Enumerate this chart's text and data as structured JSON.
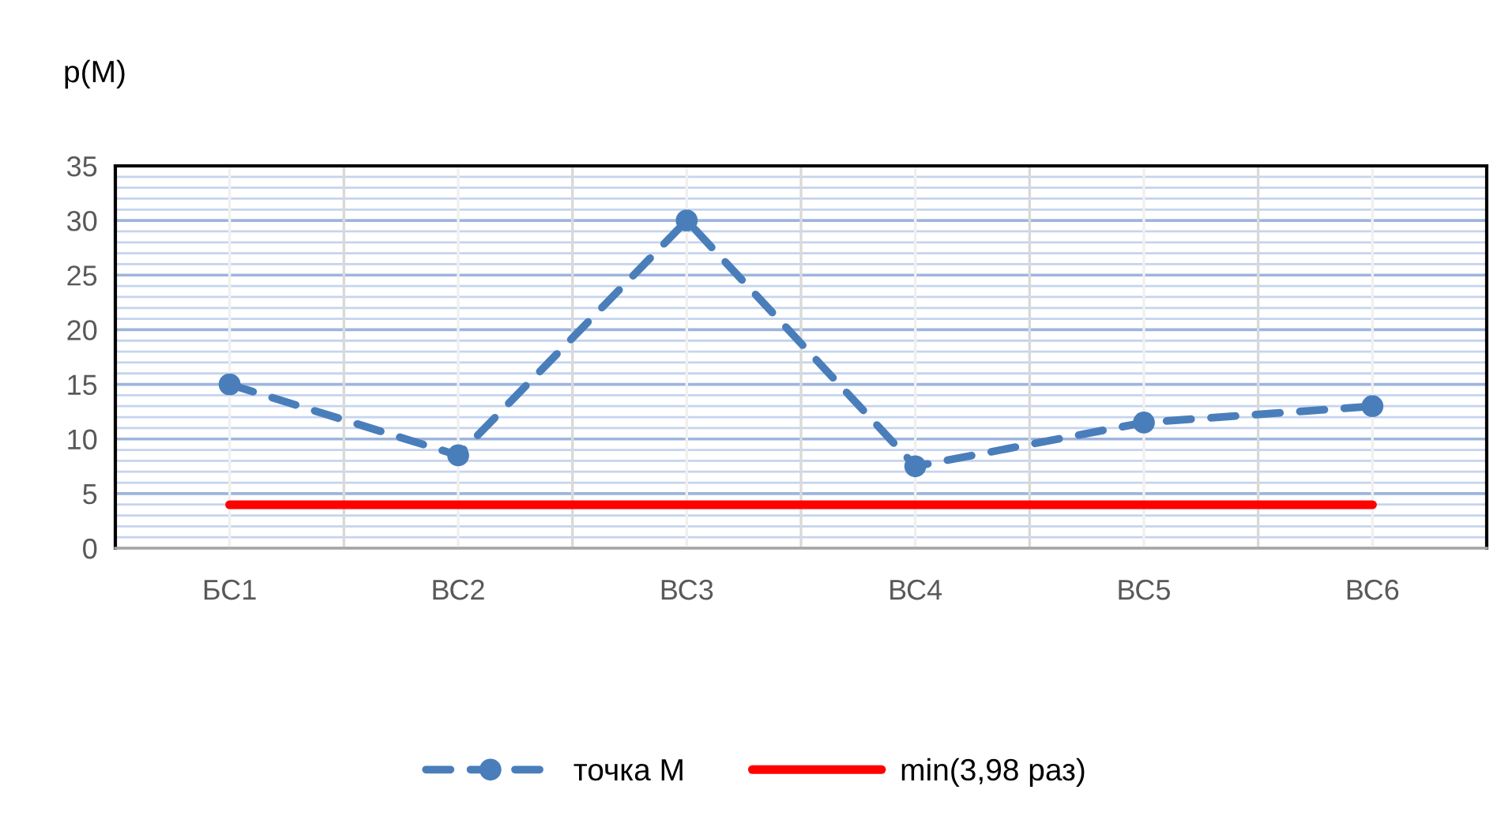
{
  "chart_data": {
    "type": "line",
    "ylabel": "p(M)",
    "categories": [
      "БС1",
      "ВС2",
      "ВС3",
      "ВС4",
      "ВС5",
      "ВС6"
    ],
    "series": [
      {
        "name": "точка М",
        "color": "#4a7ebb",
        "values": [
          15,
          8.5,
          30,
          7.5,
          11.5,
          13
        ],
        "marker": "circle",
        "line_style": "dashed"
      },
      {
        "name": "min(3,98 раз)",
        "color": "#ff0000",
        "values": [
          3.98,
          3.98,
          3.98,
          3.98,
          3.98,
          3.98
        ],
        "marker": "none",
        "line_style": "solid"
      }
    ],
    "ylim": [
      0,
      35
    ],
    "yticks": [
      0,
      {
        "value": 1,
        "label": null
      },
      {
        "value": 2,
        "label": null
      },
      {
        "value": 3,
        "label": null
      },
      {
        "value": 4,
        "label": null
      },
      5,
      {
        "value": 6,
        "label": null
      },
      {
        "value": 7,
        "label": null
      },
      {
        "value": 8,
        "label": null
      },
      {
        "value": 9,
        "label": null
      },
      10,
      {
        "value": 11,
        "label": null
      },
      {
        "value": 12,
        "label": null
      },
      {
        "value": 13,
        "label": null
      },
      {
        "value": 14,
        "label": null
      },
      15,
      {
        "value": 16,
        "label": null
      },
      {
        "value": 17,
        "label": null
      },
      {
        "value": 18,
        "label": null
      },
      {
        "value": 19,
        "label": null
      },
      20,
      {
        "value": 21,
        "label": null
      },
      {
        "value": 22,
        "label": null
      },
      {
        "value": 23,
        "label": null
      },
      {
        "value": 24,
        "label": null
      },
      25,
      {
        "value": 26,
        "label": null
      },
      {
        "value": 27,
        "label": null
      },
      {
        "value": 28,
        "label": null
      },
      {
        "value": 29,
        "label": null
      },
      30,
      {
        "value": 31,
        "label": null
      },
      {
        "value": 32,
        "label": null
      },
      {
        "value": 33,
        "label": null
      },
      {
        "value": 34,
        "label": null
      },
      35
    ],
    "grid": true,
    "legend": "bottom"
  }
}
